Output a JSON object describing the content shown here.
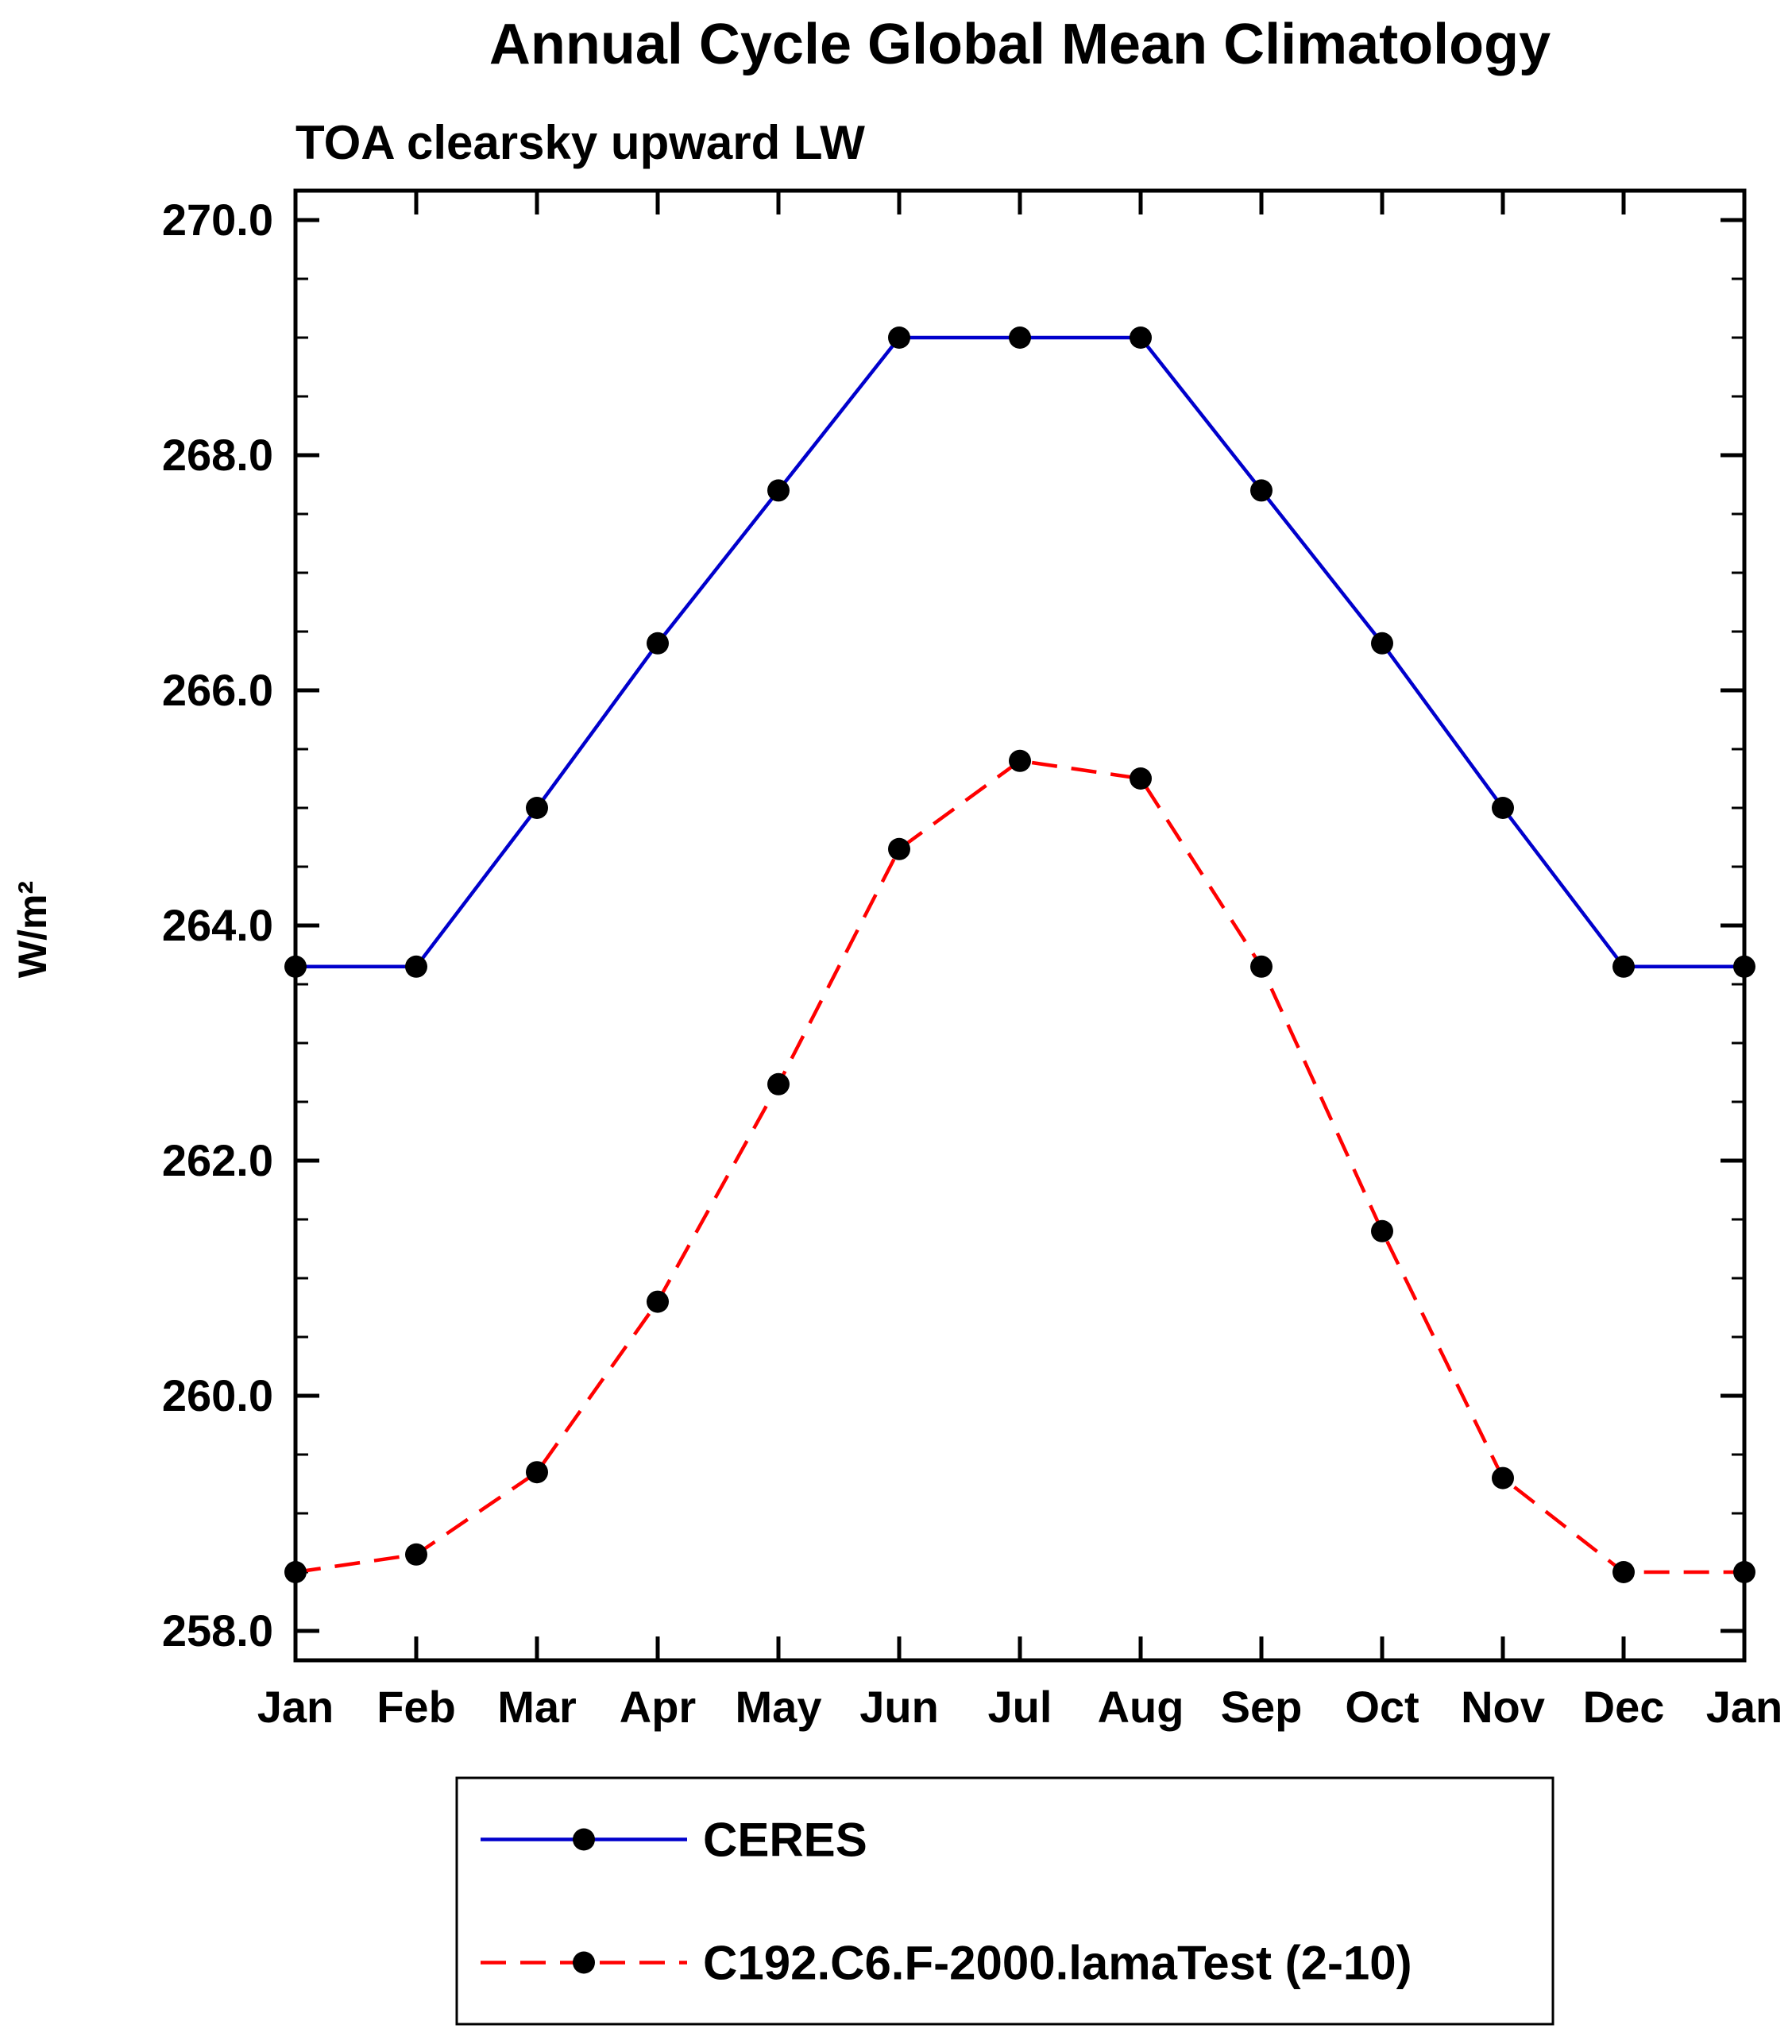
{
  "title": "Annual Cycle Global Mean Climatology",
  "subtitle": "TOA clearsky upward LW",
  "chart_data": {
    "type": "line",
    "title": "Annual Cycle Global Mean Climatology",
    "subtitle": "TOA clearsky upward LW",
    "xlabel": "",
    "ylabel": "W/m²",
    "x_tick_labels": [
      "Jan",
      "Feb",
      "Mar",
      "Apr",
      "May",
      "Jun",
      "Jul",
      "Aug",
      "Sep",
      "Oct",
      "Nov",
      "Dec",
      "Jan"
    ],
    "ylim": [
      257.75,
      270.25
    ],
    "y_major_ticks": [
      258.0,
      260.0,
      262.0,
      264.0,
      266.0,
      268.0,
      270.0
    ],
    "y_tick_labels": [
      "258.0",
      "260.0",
      "262.0",
      "264.0",
      "266.0",
      "268.0",
      "270.0"
    ],
    "y_minor_step": 0.5,
    "grid": false,
    "frame_color": "#000000",
    "marker_color": "#000000",
    "series": [
      {
        "name": "CERES",
        "color": "#0000cc",
        "style": "solid",
        "marker": "circle",
        "values": [
          263.65,
          263.65,
          265.0,
          266.4,
          267.7,
          269.0,
          269.0,
          269.0,
          267.7,
          266.4,
          265.0,
          263.65,
          263.65
        ]
      },
      {
        "name": "C192.C6.F-2000.lamaTest (2-10)",
        "color": "#ff0000",
        "style": "dashed",
        "marker": "circle",
        "values": [
          258.5,
          258.65,
          259.35,
          260.8,
          262.65,
          264.65,
          265.4,
          265.25,
          263.65,
          261.4,
          259.3,
          258.5,
          258.5
        ]
      }
    ],
    "legend": {
      "position": "bottom",
      "entries": [
        "CERES",
        "C192.C6.F-2000.lamaTest (2-10)"
      ]
    }
  }
}
